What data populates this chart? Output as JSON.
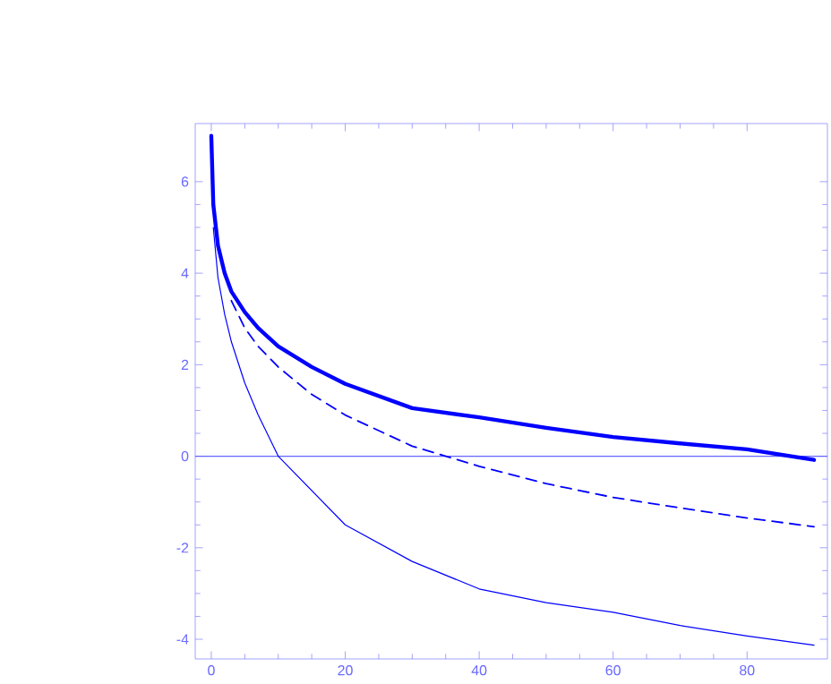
{
  "chart_data": {
    "type": "line",
    "xlim": [
      -2.4,
      92
    ],
    "ylim": [
      -4.43,
      7.27
    ],
    "xticks": [
      0,
      20,
      40,
      60,
      80
    ],
    "yticks": [
      -4,
      -2,
      0,
      2,
      4,
      6
    ],
    "grid": false,
    "legend": false,
    "marker": "none",
    "ref_lines": [
      {
        "axis": "y",
        "value": 0,
        "color": "#6666ff"
      }
    ],
    "series": [
      {
        "color": "#0000ff",
        "line_style": "solid",
        "x": [
          0,
          0.3,
          1,
          2,
          3,
          5,
          7,
          10,
          15,
          20,
          30,
          40,
          50,
          60,
          70,
          80,
          90
        ],
        "values": [
          7,
          5.5,
          4.6,
          4.0,
          3.6,
          3.15,
          2.8,
          2.4,
          1.95,
          1.58,
          1.05,
          0.85,
          0.62,
          0.42,
          0.28,
          0.15,
          -0.08
        ]
      },
      {
        "color": "#0000ff",
        "line_style": "dashed",
        "x": [
          3,
          5,
          7,
          10,
          15,
          20,
          30,
          40,
          50,
          60,
          70,
          80,
          90
        ],
        "values": [
          3.4,
          2.8,
          2.4,
          1.95,
          1.35,
          0.9,
          0.22,
          -0.22,
          -0.6,
          -0.9,
          -1.13,
          -1.35,
          -1.54
        ]
      },
      {
        "color": "#0000ff",
        "line_style": "solid",
        "x": [
          0.3,
          1,
          2,
          3,
          5,
          7,
          10,
          20,
          30,
          40,
          50,
          60,
          70,
          80,
          90
        ],
        "values": [
          5.0,
          3.9,
          3.1,
          2.5,
          1.6,
          0.9,
          0,
          -1.5,
          -2.3,
          -2.9,
          -3.2,
          -3.41,
          -3.7,
          -3.93,
          -4.13
        ]
      }
    ]
  }
}
